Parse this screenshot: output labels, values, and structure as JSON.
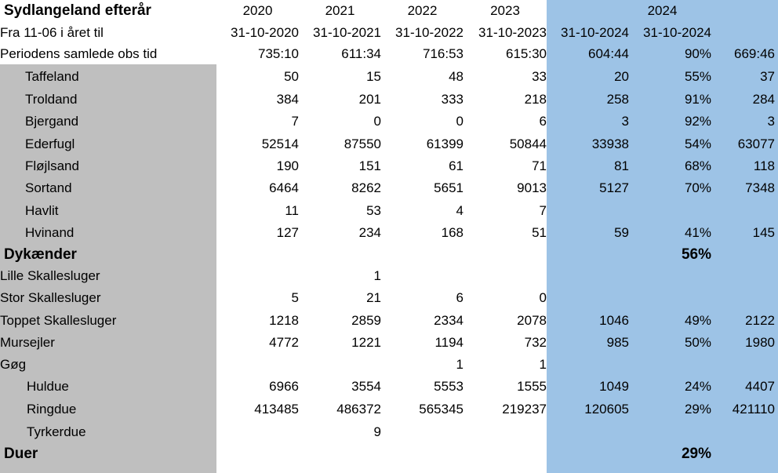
{
  "header": {
    "title": "Sydlangeland efterår",
    "years": [
      "2020",
      "2021",
      "2022",
      "2023",
      "2024"
    ],
    "period_label": "Fra 11-06 i året til",
    "period_dates": [
      "31-10-2020",
      "31-10-2021",
      "31-10-2022",
      "31-10-2023",
      "31-10-2024",
      "31-10-2024"
    ],
    "obs_label": "Periodens samlede obs tid",
    "obs_values": [
      "735:10",
      "611:34",
      "716:53",
      "615:30",
      "604:44",
      "90%",
      "669:46"
    ]
  },
  "rows": [
    {
      "label": "Taffeland",
      "v": [
        "50",
        "15",
        "48",
        "33",
        "20",
        "55%",
        "37"
      ]
    },
    {
      "label": "Troldand",
      "v": [
        "384",
        "201",
        "333",
        "218",
        "258",
        "91%",
        "284"
      ]
    },
    {
      "label": "Bjergand",
      "v": [
        "7",
        "0",
        "0",
        "6",
        "3",
        "92%",
        "3"
      ]
    },
    {
      "label": "Ederfugl",
      "v": [
        "52514",
        "87550",
        "61399",
        "50844",
        "33938",
        "54%",
        "63077"
      ]
    },
    {
      "label": "Fløjlsand",
      "v": [
        "190",
        "151",
        "61",
        "71",
        "81",
        "68%",
        "118"
      ]
    },
    {
      "label": "Sortand",
      "v": [
        "6464",
        "8262",
        "5651",
        "9013",
        "5127",
        "70%",
        "7348"
      ]
    },
    {
      "label": "Havlit",
      "v": [
        "11",
        "53",
        "4",
        "7",
        "",
        "",
        ""
      ]
    },
    {
      "label": "Hvinand",
      "v": [
        "127",
        "234",
        "168",
        "51",
        "59",
        "41%",
        "145"
      ]
    },
    {
      "label": "Dykænder",
      "v": [
        "",
        "",
        "",
        "",
        "",
        "56%",
        ""
      ]
    },
    {
      "label": "Lille Skallesluger",
      "v": [
        "",
        "1",
        "",
        "",
        "",
        "",
        ""
      ]
    },
    {
      "label": "Stor Skallesluger",
      "v": [
        "5",
        "21",
        "6",
        "0",
        "",
        "",
        ""
      ]
    },
    {
      "label": "Toppet Skallesluger",
      "v": [
        "1218",
        "2859",
        "2334",
        "2078",
        "1046",
        "49%",
        "2122"
      ]
    },
    {
      "label": "Mursejler",
      "v": [
        "4772",
        "1221",
        "1194",
        "732",
        "985",
        "50%",
        "1980"
      ]
    },
    {
      "label": "Gøg",
      "v": [
        "",
        "",
        "1",
        "1",
        "",
        "",
        ""
      ]
    },
    {
      "label": "Huldue",
      "v": [
        "6966",
        "3554",
        "5553",
        "1555",
        "1049",
        "24%",
        "4407"
      ]
    },
    {
      "label": "Ringdue",
      "v": [
        "413485",
        "486372",
        "565345",
        "219237",
        "120605",
        "29%",
        "421110"
      ]
    },
    {
      "label": "Tyrkerdue",
      "v": [
        "",
        "9",
        "",
        "",
        "",
        "",
        ""
      ]
    },
    {
      "label": "Duer",
      "v": [
        "",
        "",
        "",
        "",
        "",
        "29%",
        ""
      ]
    }
  ],
  "colors": {
    "gray_fill": "#bfbfbf",
    "blue_fill": "#9dc3e6"
  }
}
